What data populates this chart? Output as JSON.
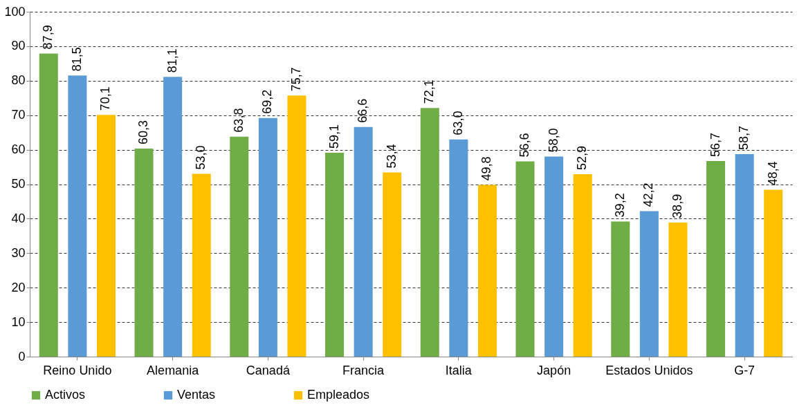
{
  "chart_data": {
    "type": "bar",
    "categories": [
      "Reino Unido",
      "Alemania",
      "Canadá",
      "Francia",
      "Italia",
      "Japón",
      "Estados Unidos",
      "G-7"
    ],
    "series": [
      {
        "name": "Activos",
        "color": "#70ad47",
        "values": [
          87.9,
          60.3,
          63.8,
          59.1,
          72.1,
          56.6,
          39.2,
          56.7
        ],
        "value_labels": [
          "87,9",
          "60,3",
          "63,8",
          "59,1",
          "72,1",
          "56,6",
          "39,2",
          "56,7"
        ]
      },
      {
        "name": "Ventas",
        "color": "#5b9bd5",
        "values": [
          81.5,
          81.1,
          69.2,
          66.6,
          63.0,
          58.0,
          42.2,
          58.7
        ],
        "value_labels": [
          "81,5",
          "81,1",
          "69,2",
          "66,6",
          "63,0",
          "58,0",
          "42,2",
          "58,7"
        ]
      },
      {
        "name": "Empleados",
        "color": "#ffc000",
        "values": [
          70.1,
          53.0,
          75.7,
          53.4,
          49.8,
          52.9,
          38.9,
          48.4
        ],
        "value_labels": [
          "70,1",
          "53,0",
          "75,7",
          "53,4",
          "49,8",
          "52,9",
          "38,9",
          "48,4"
        ]
      }
    ],
    "ylim": [
      0,
      100
    ],
    "yticks": [
      0,
      10,
      20,
      30,
      40,
      50,
      60,
      70,
      80,
      90,
      100
    ],
    "grid": "y",
    "legend": "bottom"
  }
}
